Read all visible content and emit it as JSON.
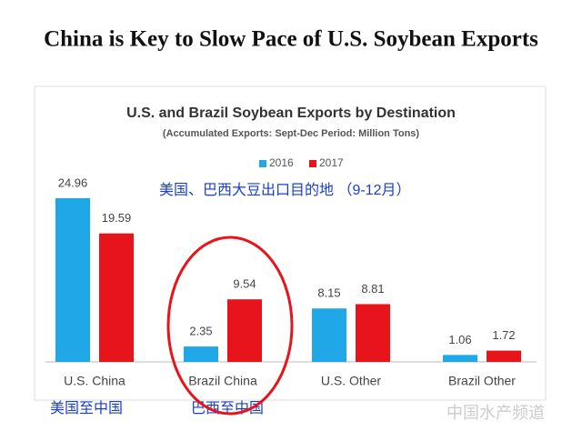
{
  "slide_title": "China is Key to Slow Pace of U.S. Soybean Exports",
  "chart_data": {
    "type": "bar",
    "title": "U.S. and Brazil Soybean Exports by Destination",
    "subtitle": "(Accumulated Exports:  Sept-Dec Period: Million Tons)",
    "categories": [
      "U.S. China",
      "Brazil China",
      "U.S. Other",
      "Brazil Other"
    ],
    "series": [
      {
        "name": "2016",
        "color": "#1fa7e8",
        "values": [
          24.96,
          2.35,
          8.15,
          1.06
        ]
      },
      {
        "name": "2017",
        "color": "#e8141c",
        "values": [
          19.59,
          9.54,
          8.81,
          1.72
        ]
      }
    ],
    "legend": "top"
  },
  "annotations": {
    "destination_note": "美国、巴西大豆出口目的地 （9-12月）",
    "us_to_china": "美国至中国",
    "brazil_to_china": "巴西至中国"
  },
  "watermark": "中国水产频道"
}
